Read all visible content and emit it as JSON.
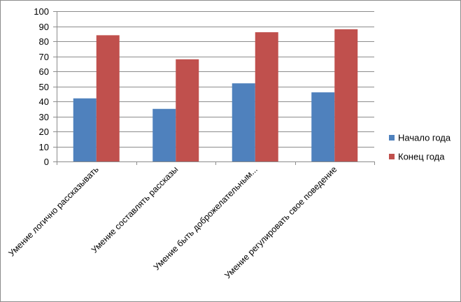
{
  "chart_data": {
    "type": "bar",
    "categories": [
      "Умение логично рассказывать",
      "Умение составлять рассказы",
      "Умение быть доброжелательным...",
      "Умение регулировать свое поведение"
    ],
    "series": [
      {
        "name": "Начало года",
        "values": [
          42,
          35,
          52,
          46
        ],
        "color": "#4F81BD"
      },
      {
        "name": "Конец года",
        "values": [
          84,
          68,
          86,
          88
        ],
        "color": "#C0504D"
      }
    ],
    "ylim": [
      0,
      100
    ],
    "yticks": [
      0,
      10,
      20,
      30,
      40,
      50,
      60,
      70,
      80,
      90,
      100
    ],
    "grid": true,
    "legend_position": "right",
    "title": "",
    "xlabel": "",
    "ylabel": ""
  }
}
